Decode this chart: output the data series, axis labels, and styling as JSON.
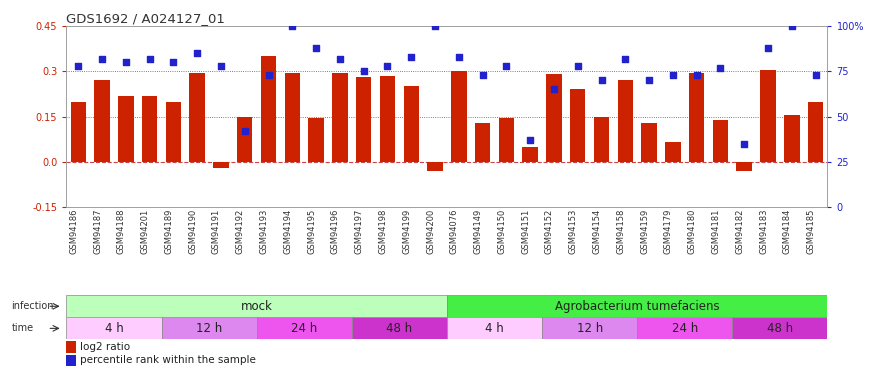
{
  "title": "GDS1692 / A024127_01",
  "samples": [
    "GSM94186",
    "GSM94187",
    "GSM94188",
    "GSM94201",
    "GSM94189",
    "GSM94190",
    "GSM94191",
    "GSM94192",
    "GSM94193",
    "GSM94194",
    "GSM94195",
    "GSM94196",
    "GSM94197",
    "GSM94198",
    "GSM94199",
    "GSM94200",
    "GSM94076",
    "GSM94149",
    "GSM94150",
    "GSM94151",
    "GSM94152",
    "GSM94153",
    "GSM94154",
    "GSM94158",
    "GSM94159",
    "GSM94179",
    "GSM94180",
    "GSM94181",
    "GSM94182",
    "GSM94183",
    "GSM94184",
    "GSM94185"
  ],
  "log2_ratio": [
    0.2,
    0.27,
    0.22,
    0.22,
    0.2,
    0.295,
    -0.02,
    0.15,
    0.35,
    0.295,
    0.145,
    0.295,
    0.28,
    0.285,
    0.25,
    -0.03,
    0.3,
    0.13,
    0.145,
    0.05,
    0.29,
    0.24,
    0.15,
    0.27,
    0.13,
    0.065,
    0.295,
    0.14,
    -0.03,
    0.305,
    0.155,
    0.2
  ],
  "percentile": [
    78,
    82,
    80,
    82,
    80,
    85,
    78,
    42,
    73,
    100,
    88,
    82,
    75,
    78,
    83,
    100,
    83,
    73,
    78,
    37,
    65,
    78,
    70,
    82,
    70,
    73,
    73,
    77,
    35,
    88,
    100,
    73
  ],
  "bar_color": "#cc2200",
  "scatter_color": "#2222cc",
  "left_ylim": [
    -0.15,
    0.45
  ],
  "right_ylim": [
    0,
    100
  ],
  "left_yticks": [
    -0.15,
    0.0,
    0.15,
    0.3,
    0.45
  ],
  "right_yticks": [
    0,
    25,
    50,
    75,
    100
  ],
  "right_yticklabels": [
    "0",
    "25",
    "50",
    "75",
    "100%"
  ],
  "hline_values": [
    0.15,
    0.3
  ],
  "bg_color": "#ffffff",
  "infection_groups": [
    {
      "label": "mock",
      "start": 0,
      "end": 16,
      "color": "#bbffbb"
    },
    {
      "label": "Agrobacterium tumefaciens",
      "start": 16,
      "end": 32,
      "color": "#44ee44"
    }
  ],
  "time_groups": [
    {
      "label": "4 h",
      "start": 0,
      "end": 4,
      "color": "#ffccff"
    },
    {
      "label": "12 h",
      "start": 4,
      "end": 8,
      "color": "#dd88ee"
    },
    {
      "label": "24 h",
      "start": 8,
      "end": 12,
      "color": "#ee55ee"
    },
    {
      "label": "48 h",
      "start": 12,
      "end": 16,
      "color": "#cc33cc"
    },
    {
      "label": "4 h",
      "start": 16,
      "end": 20,
      "color": "#ffccff"
    },
    {
      "label": "12 h",
      "start": 20,
      "end": 24,
      "color": "#dd88ee"
    },
    {
      "label": "24 h",
      "start": 24,
      "end": 28,
      "color": "#ee55ee"
    },
    {
      "label": "48 h",
      "start": 28,
      "end": 32,
      "color": "#cc33cc"
    }
  ],
  "legend_items": [
    {
      "label": "log2 ratio",
      "color": "#cc2200"
    },
    {
      "label": "percentile rank within the sample",
      "color": "#2222cc"
    }
  ],
  "tick_label_fontsize": 6.0,
  "annotation_fontsize": 8.5,
  "title_fontsize": 9.5
}
